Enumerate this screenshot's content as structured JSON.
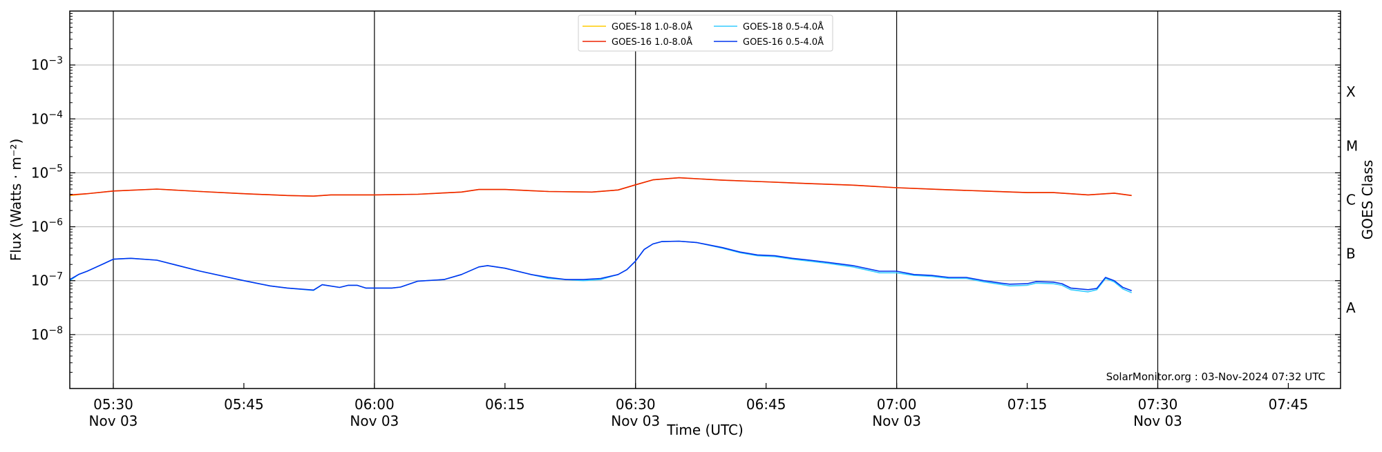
{
  "chart_data": {
    "type": "line",
    "title": "",
    "xlabel": "Time (UTC)",
    "ylabel": "Flux (Watts · m⁻²)",
    "y2label": "GOES Class",
    "yscale": "log",
    "ylim": [
      1e-09,
      0.01
    ],
    "xlim": [
      "05:25",
      "07:51"
    ],
    "grid": "horizontal at decades",
    "legend_position": "top-center",
    "credit": "SolarMonitor.org : 03-Nov-2024 07:32 UTC",
    "y_ticks": [
      {
        "value": 1e-08,
        "base": "10",
        "exp": "−8"
      },
      {
        "value": 1e-07,
        "base": "10",
        "exp": "−7"
      },
      {
        "value": 1e-06,
        "base": "10",
        "exp": "−6"
      },
      {
        "value": 1e-05,
        "base": "10",
        "exp": "−5"
      },
      {
        "value": 0.0001,
        "base": "10",
        "exp": "−4"
      },
      {
        "value": 0.001,
        "base": "10",
        "exp": "−3"
      }
    ],
    "x_ticks": [
      {
        "time": "05:30",
        "label": "05:30",
        "sub": "Nov 03",
        "vline": true
      },
      {
        "time": "05:45",
        "label": "05:45",
        "sub": "",
        "vline": false
      },
      {
        "time": "06:00",
        "label": "06:00",
        "sub": "Nov 03",
        "vline": true
      },
      {
        "time": "06:15",
        "label": "06:15",
        "sub": "",
        "vline": false
      },
      {
        "time": "06:30",
        "label": "06:30",
        "sub": "Nov 03",
        "vline": true
      },
      {
        "time": "06:45",
        "label": "06:45",
        "sub": "",
        "vline": false
      },
      {
        "time": "07:00",
        "label": "07:00",
        "sub": "Nov 03",
        "vline": true
      },
      {
        "time": "07:15",
        "label": "07:15",
        "sub": "",
        "vline": false
      },
      {
        "time": "07:30",
        "label": "07:30",
        "sub": "Nov 03",
        "vline": true
      },
      {
        "time": "07:45",
        "label": "07:45",
        "sub": "",
        "vline": false
      }
    ],
    "goes_classes": [
      {
        "label": "A",
        "value": 3.16e-08
      },
      {
        "label": "B",
        "value": 3.16e-07
      },
      {
        "label": "C",
        "value": 3.16e-06
      },
      {
        "label": "M",
        "value": 3.16e-05
      },
      {
        "label": "X",
        "value": 0.000316
      }
    ],
    "series": [
      {
        "name": "GOES-18 1.0-8.0Å",
        "color": "#ffcc00",
        "x": [
          "05:25",
          "05:27",
          "05:30",
          "05:35",
          "05:40",
          "05:45",
          "05:50",
          "05:53",
          "05:55",
          "05:58",
          "06:00",
          "06:05",
          "06:10",
          "06:12",
          "06:15",
          "06:20",
          "06:25",
          "06:28",
          "06:30",
          "06:32",
          "06:35",
          "06:40",
          "06:45",
          "06:50",
          "06:55",
          "07:00",
          "07:05",
          "07:10",
          "07:15",
          "07:18",
          "07:22",
          "07:25",
          "07:27"
        ],
        "values": [
          3.8e-06,
          4.1e-06,
          4.6e-06,
          5e-06,
          4.5e-06,
          4.1e-06,
          3.8e-06,
          3.7e-06,
          3.9e-06,
          3.9e-06,
          3.9e-06,
          4e-06,
          4.4e-06,
          4.9e-06,
          4.9e-06,
          4.5e-06,
          4.4e-06,
          4.8e-06,
          6e-06,
          7.4e-06,
          8.1e-06,
          7.3e-06,
          6.8e-06,
          6.3e-06,
          5.9e-06,
          5.3e-06,
          4.9e-06,
          4.6e-06,
          4.3e-06,
          4.3e-06,
          3.9e-06,
          4.2e-06,
          3.8e-06
        ]
      },
      {
        "name": "GOES-18 0.5-4.0Å",
        "color": "#33ccff",
        "x": [
          "05:25",
          "05:26",
          "05:27",
          "05:29",
          "05:30",
          "05:32",
          "05:35",
          "05:40",
          "05:45",
          "05:48",
          "05:50",
          "05:53",
          "05:54",
          "05:56",
          "05:57",
          "05:58",
          "05:59",
          "06:00",
          "06:02",
          "06:03",
          "06:05",
          "06:08",
          "06:10",
          "06:12",
          "06:13",
          "06:15",
          "06:18",
          "06:20",
          "06:22",
          "06:24",
          "06:26",
          "06:28",
          "06:29",
          "06:30",
          "06:31",
          "06:32",
          "06:33",
          "06:35",
          "06:37",
          "06:40",
          "06:42",
          "06:44",
          "06:46",
          "06:48",
          "06:50",
          "06:52",
          "06:55",
          "06:58",
          "07:00",
          "07:02",
          "07:04",
          "07:06",
          "07:08",
          "07:10",
          "07:12",
          "07:13",
          "07:15",
          "07:16",
          "07:18",
          "07:19",
          "07:20",
          "07:22",
          "07:23",
          "07:24",
          "07:25",
          "07:26",
          "07:27"
        ],
        "values": [
          1e-07,
          1.3e-07,
          1.5e-07,
          2.1e-07,
          2.5e-07,
          2.6e-07,
          2.4e-07,
          1.5e-07,
          1e-07,
          8e-08,
          7.3e-08,
          6.6e-08,
          8.4e-08,
          7.5e-08,
          8.2e-08,
          8.2e-08,
          7.3e-08,
          7.3e-08,
          7.3e-08,
          7.6e-08,
          9.8e-08,
          1.05e-07,
          1.3e-07,
          1.8e-07,
          1.9e-07,
          1.7e-07,
          1.3e-07,
          1.1e-07,
          1.05e-07,
          1e-07,
          1.05e-07,
          1.3e-07,
          1.6e-07,
          2.3e-07,
          3.8e-07,
          4.8e-07,
          5.3e-07,
          5.4e-07,
          5.1e-07,
          4e-07,
          3.3e-07,
          2.9e-07,
          2.8e-07,
          2.5e-07,
          2.3e-07,
          2.1e-07,
          1.8e-07,
          1.4e-07,
          1.4e-07,
          1.25e-07,
          1.2e-07,
          1.1e-07,
          1.1e-07,
          9.5e-08,
          8.5e-08,
          8e-08,
          8.2e-08,
          9e-08,
          8.8e-08,
          8.2e-08,
          6.8e-08,
          6.2e-08,
          6.8e-08,
          1.1e-07,
          9.5e-08,
          7e-08,
          6e-08
        ]
      },
      {
        "name": "GOES-16 1.0-8.0Å",
        "color": "#ee2200",
        "x": [
          "05:25",
          "05:27",
          "05:30",
          "05:35",
          "05:40",
          "05:45",
          "05:50",
          "05:53",
          "05:55",
          "05:58",
          "06:00",
          "06:05",
          "06:10",
          "06:12",
          "06:15",
          "06:20",
          "06:25",
          "06:28",
          "06:30",
          "06:32",
          "06:35",
          "06:40",
          "06:45",
          "06:50",
          "06:55",
          "07:00",
          "07:05",
          "07:10",
          "07:15",
          "07:18",
          "07:22",
          "07:25",
          "07:27"
        ],
        "values": [
          3.9e-06,
          4.1e-06,
          4.6e-06,
          5e-06,
          4.5e-06,
          4.1e-06,
          3.8e-06,
          3.7e-06,
          3.9e-06,
          3.9e-06,
          3.9e-06,
          4e-06,
          4.4e-06,
          4.9e-06,
          4.9e-06,
          4.5e-06,
          4.4e-06,
          4.8e-06,
          6e-06,
          7.4e-06,
          8.1e-06,
          7.3e-06,
          6.8e-06,
          6.3e-06,
          5.9e-06,
          5.3e-06,
          4.9e-06,
          4.6e-06,
          4.3e-06,
          4.3e-06,
          3.9e-06,
          4.2e-06,
          3.8e-06
        ]
      },
      {
        "name": "GOES-16 0.5-4.0Å",
        "color": "#0033ee",
        "x": [
          "05:25",
          "05:26",
          "05:27",
          "05:29",
          "05:30",
          "05:32",
          "05:35",
          "05:40",
          "05:45",
          "05:48",
          "05:50",
          "05:53",
          "05:54",
          "05:56",
          "05:57",
          "05:58",
          "05:59",
          "06:00",
          "06:02",
          "06:03",
          "06:05",
          "06:08",
          "06:10",
          "06:12",
          "06:13",
          "06:15",
          "06:18",
          "06:20",
          "06:22",
          "06:24",
          "06:26",
          "06:28",
          "06:29",
          "06:30",
          "06:31",
          "06:32",
          "06:33",
          "06:35",
          "06:37",
          "06:40",
          "06:42",
          "06:44",
          "06:46",
          "06:48",
          "06:50",
          "06:52",
          "06:55",
          "06:58",
          "07:00",
          "07:02",
          "07:04",
          "07:06",
          "07:08",
          "07:10",
          "07:12",
          "07:13",
          "07:15",
          "07:16",
          "07:18",
          "07:19",
          "07:20",
          "07:22",
          "07:23",
          "07:24",
          "07:25",
          "07:26",
          "07:27"
        ],
        "values": [
          1.05e-07,
          1.3e-07,
          1.5e-07,
          2.1e-07,
          2.5e-07,
          2.6e-07,
          2.4e-07,
          1.5e-07,
          1e-07,
          8e-08,
          7.3e-08,
          6.7e-08,
          8.4e-08,
          7.5e-08,
          8.2e-08,
          8.2e-08,
          7.3e-08,
          7.3e-08,
          7.3e-08,
          7.6e-08,
          9.8e-08,
          1.05e-07,
          1.3e-07,
          1.8e-07,
          1.9e-07,
          1.7e-07,
          1.3e-07,
          1.15e-07,
          1.05e-07,
          1.05e-07,
          1.1e-07,
          1.3e-07,
          1.6e-07,
          2.3e-07,
          3.8e-07,
          4.8e-07,
          5.3e-07,
          5.4e-07,
          5.1e-07,
          4.1e-07,
          3.4e-07,
          3e-07,
          2.9e-07,
          2.6e-07,
          2.4e-07,
          2.2e-07,
          1.9e-07,
          1.5e-07,
          1.5e-07,
          1.3e-07,
          1.25e-07,
          1.15e-07,
          1.15e-07,
          1e-07,
          9e-08,
          8.6e-08,
          8.8e-08,
          9.6e-08,
          9.4e-08,
          8.8e-08,
          7.3e-08,
          6.8e-08,
          7.2e-08,
          1.15e-07,
          1e-07,
          7.5e-08,
          6.5e-08
        ]
      }
    ],
    "legend_order": [
      0,
      1,
      2,
      3
    ]
  }
}
